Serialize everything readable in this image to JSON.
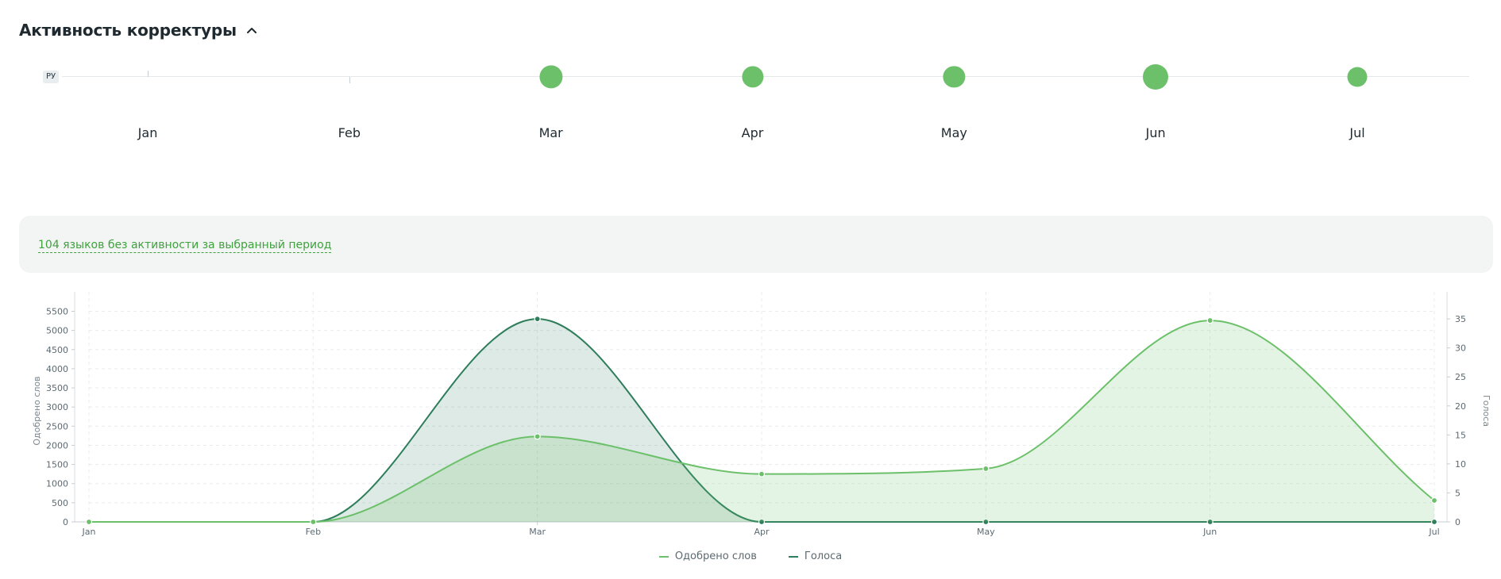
{
  "header": {
    "title": "Активность корректуры"
  },
  "timeline": {
    "language_code": "РУ",
    "months": [
      "Jan",
      "Feb",
      "Mar",
      "Apr",
      "May",
      "Jun",
      "Jul"
    ],
    "activity_relative": [
      0,
      0,
      0.8,
      0.66,
      0.66,
      1.0,
      0.5
    ]
  },
  "notice": {
    "text": "104 языков без активности за выбранный период"
  },
  "chart_data": {
    "type": "area",
    "x": [
      "Jan",
      "Feb",
      "Mar",
      "Apr",
      "May",
      "Jun",
      "Jul"
    ],
    "series": [
      {
        "name": "Одобрено слов",
        "axis": "left",
        "color": "#6cc06a",
        "values": [
          0,
          0,
          2230,
          1250,
          1390,
          5260,
          560
        ]
      },
      {
        "name": "Голоса",
        "axis": "right",
        "color": "#2e7d5b",
        "values": [
          0,
          0,
          35,
          0,
          0,
          0,
          0
        ]
      }
    ],
    "y_left": {
      "label": "Одобрено слов",
      "min": 0,
      "max": 5800,
      "ticks": [
        0,
        500,
        1000,
        1500,
        2000,
        2500,
        3000,
        3500,
        4000,
        4500,
        5000,
        5500
      ]
    },
    "y_right": {
      "label": "Голоса",
      "min": 0,
      "max": 38.3,
      "ticks": [
        0,
        5,
        10,
        15,
        20,
        25,
        30,
        35
      ]
    },
    "grid": true,
    "legend": "bottom-center"
  }
}
